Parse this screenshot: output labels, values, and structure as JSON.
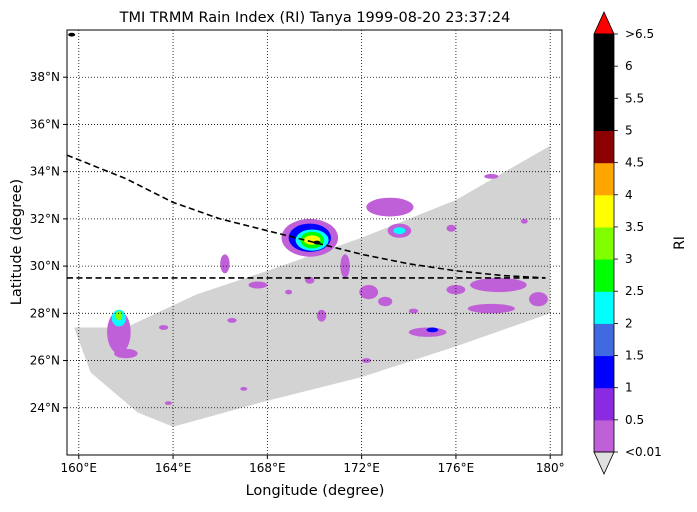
{
  "chart_data": {
    "type": "heatmap",
    "title": "TMI TRMM Rain Index (RI) Tanya 1999-08-20 23:37:24",
    "xlabel": "Longitude (degree)",
    "ylabel": "Latitude (degree)",
    "xlim": [
      159.5,
      180.5
    ],
    "ylim": [
      22.0,
      40.0
    ],
    "x_ticks": [
      {
        "value": 160,
        "label": "160°E"
      },
      {
        "value": 164,
        "label": "164°E"
      },
      {
        "value": 168,
        "label": "168°E"
      },
      {
        "value": 172,
        "label": "172°E"
      },
      {
        "value": 176,
        "label": "176°E"
      },
      {
        "value": 180,
        "label": "180°"
      }
    ],
    "y_ticks": [
      {
        "value": 24,
        "label": "24°N"
      },
      {
        "value": 26,
        "label": "26°N"
      },
      {
        "value": 28,
        "label": "28°N"
      },
      {
        "value": 30,
        "label": "30°N"
      },
      {
        "value": 32,
        "label": "32°N"
      },
      {
        "value": 34,
        "label": "34°N"
      },
      {
        "value": 36,
        "label": "36°N"
      },
      {
        "value": 38,
        "label": "38°N"
      }
    ],
    "grid": true,
    "swath_color": "#d3d3d3",
    "swath_outline": [
      [
        159.8,
        27.4
      ],
      [
        162.0,
        27.4
      ],
      [
        165.0,
        28.8
      ],
      [
        168.0,
        29.8
      ],
      [
        172.0,
        31.2
      ],
      [
        176.0,
        32.8
      ],
      [
        180.0,
        35.1
      ],
      [
        180.0,
        28.0
      ],
      [
        176.0,
        26.6
      ],
      [
        172.0,
        25.3
      ],
      [
        168.0,
        24.3
      ],
      [
        164.0,
        23.2
      ],
      [
        162.5,
        23.8
      ],
      [
        160.5,
        25.5
      ],
      [
        159.8,
        27.4
      ]
    ],
    "colorbar": {
      "label": "RI",
      "tick_labels": [
        "<0.01",
        "0.5",
        "1",
        "1.5",
        "2",
        "2.5",
        "3",
        "3.5",
        "4",
        "4.5",
        "5",
        "5.5",
        "6",
        ">6.5"
      ],
      "colors": [
        "#c060d8",
        "#8a2be2",
        "#0000ff",
        "#4169e1",
        "#00ffff",
        "#00ff00",
        "#7fff00",
        "#ffff00",
        "#ffa500",
        "#8b0000",
        "#000000",
        "#000000",
        "#000000"
      ],
      "over_color": "#ff0000",
      "under_color": "#e0e0e0"
    },
    "track_lines": [
      {
        "style": "dashed",
        "points": [
          [
            159.5,
            34.7
          ],
          [
            162,
            33.7
          ],
          [
            164,
            32.7
          ],
          [
            166,
            32.0
          ],
          [
            168,
            31.5
          ],
          [
            170,
            31.0
          ],
          [
            172,
            30.5
          ],
          [
            174,
            30.1
          ],
          [
            176,
            29.8
          ],
          [
            178,
            29.6
          ],
          [
            179.8,
            29.5
          ]
        ]
      },
      {
        "style": "dashed",
        "points": [
          [
            159.5,
            29.5
          ],
          [
            179.8,
            29.5
          ]
        ]
      }
    ],
    "rain_patches": [
      {
        "lon": 169.8,
        "lat": 31.2,
        "rx": 1.2,
        "ry": 0.8,
        "ri": 0.3
      },
      {
        "lon": 169.8,
        "lat": 31.2,
        "rx": 0.9,
        "ry": 0.6,
        "ri": 1.2
      },
      {
        "lon": 169.9,
        "lat": 31.1,
        "rx": 0.7,
        "ry": 0.45,
        "ri": 2.2
      },
      {
        "lon": 169.9,
        "lat": 31.1,
        "rx": 0.5,
        "ry": 0.35,
        "ri": 2.8
      },
      {
        "lon": 169.9,
        "lat": 31.1,
        "rx": 0.35,
        "ry": 0.2,
        "ri": 3.7
      },
      {
        "lon": 170.1,
        "lat": 31.0,
        "rx": 0.15,
        "ry": 0.08,
        "ri": 5.0
      },
      {
        "lon": 161.7,
        "lat": 27.2,
        "rx": 0.5,
        "ry": 0.9,
        "ri": 0.3
      },
      {
        "lon": 161.7,
        "lat": 27.8,
        "rx": 0.3,
        "ry": 0.35,
        "ri": 2.3
      },
      {
        "lon": 161.7,
        "lat": 27.9,
        "rx": 0.15,
        "ry": 0.2,
        "ri": 3.2
      },
      {
        "lon": 173.2,
        "lat": 32.5,
        "rx": 1.0,
        "ry": 0.4,
        "ri": 0.3
      },
      {
        "lon": 173.6,
        "lat": 31.5,
        "rx": 0.5,
        "ry": 0.3,
        "ri": 0.3
      },
      {
        "lon": 173.6,
        "lat": 31.5,
        "rx": 0.25,
        "ry": 0.15,
        "ri": 2.2
      },
      {
        "lon": 174.8,
        "lat": 27.2,
        "rx": 0.8,
        "ry": 0.2,
        "ri": 0.3
      },
      {
        "lon": 175.0,
        "lat": 27.3,
        "rx": 0.25,
        "ry": 0.1,
        "ri": 1.2
      },
      {
        "lon": 166.2,
        "lat": 30.1,
        "rx": 0.2,
        "ry": 0.4,
        "ri": 0.3
      },
      {
        "lon": 167.6,
        "lat": 29.2,
        "rx": 0.4,
        "ry": 0.15,
        "ri": 0.3
      },
      {
        "lon": 171.3,
        "lat": 30.0,
        "rx": 0.2,
        "ry": 0.5,
        "ri": 0.3
      },
      {
        "lon": 172.3,
        "lat": 28.9,
        "rx": 0.4,
        "ry": 0.3,
        "ri": 0.3
      },
      {
        "lon": 177.8,
        "lat": 29.2,
        "rx": 1.2,
        "ry": 0.3,
        "ri": 0.3
      },
      {
        "lon": 177.5,
        "lat": 28.2,
        "rx": 1.0,
        "ry": 0.2,
        "ri": 0.3
      },
      {
        "lon": 179.5,
        "lat": 28.6,
        "rx": 0.4,
        "ry": 0.3,
        "ri": 0.3
      },
      {
        "lon": 170.3,
        "lat": 27.9,
        "rx": 0.2,
        "ry": 0.25,
        "ri": 0.3
      },
      {
        "lon": 173.0,
        "lat": 28.5,
        "rx": 0.3,
        "ry": 0.2,
        "ri": 0.3
      },
      {
        "lon": 176.0,
        "lat": 29.0,
        "rx": 0.4,
        "ry": 0.2,
        "ri": 0.3
      },
      {
        "lon": 175.8,
        "lat": 31.6,
        "rx": 0.2,
        "ry": 0.15,
        "ri": 0.3
      },
      {
        "lon": 177.5,
        "lat": 33.8,
        "rx": 0.3,
        "ry": 0.1,
        "ri": 0.3
      },
      {
        "lon": 162.0,
        "lat": 26.3,
        "rx": 0.5,
        "ry": 0.2,
        "ri": 0.3
      },
      {
        "lon": 163.6,
        "lat": 27.4,
        "rx": 0.2,
        "ry": 0.1,
        "ri": 0.3
      },
      {
        "lon": 166.5,
        "lat": 27.7,
        "rx": 0.2,
        "ry": 0.1,
        "ri": 0.3
      },
      {
        "lon": 169.8,
        "lat": 29.4,
        "rx": 0.2,
        "ry": 0.15,
        "ri": 0.3
      },
      {
        "lon": 168.9,
        "lat": 28.9,
        "rx": 0.15,
        "ry": 0.1,
        "ri": 0.3
      },
      {
        "lon": 174.2,
        "lat": 28.1,
        "rx": 0.2,
        "ry": 0.1,
        "ri": 0.3
      },
      {
        "lon": 172.2,
        "lat": 26.0,
        "rx": 0.2,
        "ry": 0.1,
        "ri": 0.3
      },
      {
        "lon": 167.0,
        "lat": 24.8,
        "rx": 0.15,
        "ry": 0.08,
        "ri": 0.3
      },
      {
        "lon": 163.8,
        "lat": 24.2,
        "rx": 0.15,
        "ry": 0.08,
        "ri": 0.3
      },
      {
        "lon": 178.9,
        "lat": 31.9,
        "rx": 0.15,
        "ry": 0.1,
        "ri": 0.3
      },
      {
        "lon": 159.7,
        "lat": 39.8,
        "rx": 0.15,
        "ry": 0.08,
        "ri": 5.0
      }
    ]
  }
}
